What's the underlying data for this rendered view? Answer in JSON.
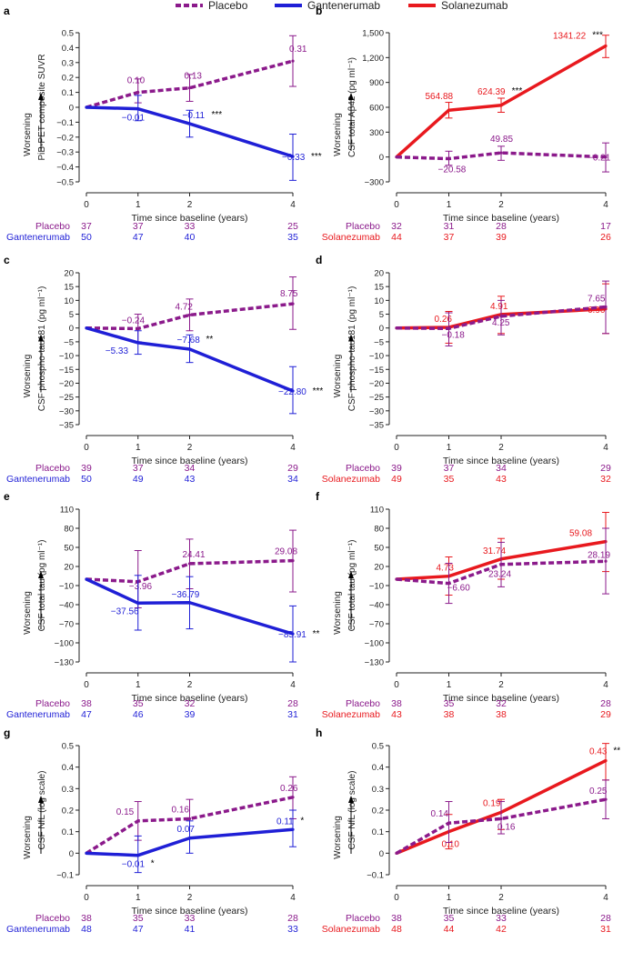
{
  "legend": [
    {
      "name": "Placebo",
      "color": "#8b1a8b",
      "dashed": true
    },
    {
      "name": "Gantenerumab",
      "color": "#1f1fd6",
      "dashed": false
    },
    {
      "name": "Solanezumab",
      "color": "#e8191e",
      "dashed": false
    }
  ],
  "colors": {
    "placebo": "#8b1a8b",
    "gantenerumab": "#1f1fd6",
    "solanezumab": "#e8191e",
    "axis": "#222222"
  },
  "common": {
    "xlabel": "Time since baseline (years)",
    "worsening": "Worsening",
    "x_ticks": [
      0,
      1,
      2,
      4
    ]
  },
  "chart_data": [
    {
      "panel": "a",
      "type": "line",
      "ylabel": "PiB-PET composite SUVR",
      "ylim": [
        -0.5,
        0.5
      ],
      "yticks": [
        0.5,
        0.4,
        0.3,
        0.2,
        0.1,
        0,
        -0.1,
        -0.2,
        -0.3,
        -0.4,
        -0.5
      ],
      "x": [
        0,
        1,
        2,
        4
      ],
      "series": [
        {
          "name": "Placebo",
          "color": "#8b1a8b",
          "dashed": true,
          "values": [
            0,
            0.1,
            0.13,
            0.31
          ],
          "err": [
            [
              0,
              0
            ],
            [
              0.03,
              0.19
            ],
            [
              0.04,
              0.22
            ],
            [
              0.14,
              0.48
            ]
          ],
          "labels": [
            "",
            "0.10",
            "0.13",
            "0.31"
          ],
          "sig": [
            "",
            "",
            "",
            ""
          ]
        },
        {
          "name": "Gantenerumab",
          "color": "#1f1fd6",
          "dashed": false,
          "values": [
            0,
            -0.01,
            -0.11,
            -0.33
          ],
          "err": [
            [
              0,
              0
            ],
            [
              -0.09,
              0.08
            ],
            [
              -0.2,
              -0.02
            ],
            [
              -0.49,
              -0.18
            ]
          ],
          "labels": [
            "",
            "−0.01",
            "−0.11",
            "−0.33"
          ],
          "sig": [
            "",
            "",
            "***",
            "***"
          ]
        }
      ],
      "counts": [
        {
          "name": "Placebo",
          "values": [
            "37",
            "37",
            "33",
            "25"
          ]
        },
        {
          "name": "Gantenerumab",
          "values": [
            "50",
            "47",
            "40",
            "35"
          ]
        }
      ]
    },
    {
      "panel": "b",
      "type": "line",
      "ylabel": "CSF total Aβ42 (pg ml⁻¹)",
      "ylim": [
        -300,
        1500
      ],
      "yticks": [
        1500,
        1200,
        900,
        600,
        300,
        0,
        -300
      ],
      "x": [
        0,
        1,
        2,
        4
      ],
      "series": [
        {
          "name": "Solanezumab",
          "color": "#e8191e",
          "dashed": false,
          "values": [
            0,
            564.88,
            624.39,
            1341.22
          ],
          "err": [
            [
              0,
              0
            ],
            [
              470,
              660
            ],
            [
              540,
              710
            ],
            [
              1200,
              1470
            ]
          ],
          "labels": [
            "",
            "564.88",
            "624.39",
            "1341.22"
          ],
          "sig": [
            "",
            "",
            "***",
            "***"
          ]
        },
        {
          "name": "Placebo",
          "color": "#8b1a8b",
          "dashed": true,
          "values": [
            0,
            -20.58,
            49.85,
            -0.21
          ],
          "err": [
            [
              0,
              0
            ],
            [
              -100,
              70
            ],
            [
              -40,
              130
            ],
            [
              -180,
              170
            ]
          ],
          "labels": [
            "",
            "−20.58",
            "49.85",
            "−0.21"
          ],
          "sig": [
            "",
            "",
            "",
            ""
          ]
        }
      ],
      "counts": [
        {
          "name": "Placebo",
          "values": [
            "32",
            "31",
            "28",
            "17"
          ]
        },
        {
          "name": "Solanezumab",
          "values": [
            "44",
            "37",
            "39",
            "26"
          ]
        }
      ]
    },
    {
      "panel": "c",
      "type": "line",
      "ylabel": "CSF phospho-tau181 (pg ml⁻¹)",
      "ylim": [
        -35,
        20
      ],
      "yticks": [
        20,
        15,
        10,
        5,
        0,
        -5,
        -10,
        -15,
        -20,
        -25,
        -30,
        -35
      ],
      "x": [
        0,
        1,
        2,
        4
      ],
      "series": [
        {
          "name": "Placebo",
          "color": "#8b1a8b",
          "dashed": true,
          "values": [
            0,
            -0.24,
            4.72,
            8.75
          ],
          "err": [
            [
              0,
              0
            ],
            [
              -5,
              5
            ],
            [
              -1,
              10.5
            ],
            [
              -0.5,
              18.5
            ]
          ],
          "labels": [
            "",
            "−0.24",
            "4.72",
            "8.75"
          ],
          "sig": [
            "",
            "",
            "",
            ""
          ]
        },
        {
          "name": "Gantenerumab",
          "color": "#1f1fd6",
          "dashed": false,
          "values": [
            0,
            -5.33,
            -7.68,
            -22.8
          ],
          "err": [
            [
              0,
              0
            ],
            [
              -9.5,
              -1
            ],
            [
              -12.5,
              -2.5
            ],
            [
              -31,
              -14
            ]
          ],
          "labels": [
            "",
            "−5.33",
            "−7.68",
            "−22.80"
          ],
          "sig": [
            "",
            "",
            "**",
            "***"
          ]
        }
      ],
      "counts": [
        {
          "name": "Placebo",
          "values": [
            "39",
            "37",
            "34",
            "29"
          ]
        },
        {
          "name": "Gantenerumab",
          "values": [
            "50",
            "49",
            "43",
            "34"
          ]
        }
      ]
    },
    {
      "panel": "d",
      "type": "line",
      "ylabel": "CSF phospho-tau181 (pg ml⁻¹)",
      "ylim": [
        -35,
        20
      ],
      "yticks": [
        20,
        15,
        10,
        5,
        0,
        -5,
        -10,
        -15,
        -20,
        -25,
        -30,
        -35
      ],
      "x": [
        0,
        1,
        2,
        4
      ],
      "series": [
        {
          "name": "Solanezumab",
          "color": "#e8191e",
          "dashed": false,
          "values": [
            0,
            0.26,
            4.91,
            6.9
          ],
          "err": [
            [
              0,
              0
            ],
            [
              -5.5,
              6
            ],
            [
              -2,
              11.5
            ],
            [
              -2,
              16
            ]
          ],
          "labels": [
            "",
            "0.26",
            "4.91",
            "6.90"
          ],
          "sig": [
            "",
            "",
            "",
            ""
          ]
        },
        {
          "name": "Placebo",
          "color": "#8b1a8b",
          "dashed": true,
          "values": [
            0,
            -0.18,
            4.25,
            7.65
          ],
          "err": [
            [
              0,
              0
            ],
            [
              -6.5,
              5.5
            ],
            [
              -2.5,
              10
            ],
            [
              -2,
              17
            ]
          ],
          "labels": [
            "",
            "−0.18",
            "4.25",
            "7.65"
          ],
          "sig": [
            "",
            "",
            "",
            ""
          ]
        }
      ],
      "counts": [
        {
          "name": "Placebo",
          "values": [
            "39",
            "37",
            "34",
            "29"
          ]
        },
        {
          "name": "Solanezumab",
          "values": [
            "49",
            "35",
            "43",
            "32"
          ]
        }
      ]
    },
    {
      "panel": "e",
      "type": "line",
      "ylabel": "CSF total tau (pg ml⁻¹)",
      "ylim": [
        -130,
        110
      ],
      "yticks": [
        110,
        80,
        50,
        20,
        -10,
        -40,
        -70,
        -100,
        -130
      ],
      "x": [
        0,
        1,
        2,
        4
      ],
      "series": [
        {
          "name": "Placebo",
          "color": "#8b1a8b",
          "dashed": true,
          "values": [
            0,
            -3.96,
            24.41,
            29.08
          ],
          "err": [
            [
              0,
              0
            ],
            [
              -45,
              45
            ],
            [
              -15,
              63
            ],
            [
              -20,
              77
            ]
          ],
          "labels": [
            "",
            "−3.96",
            "24.41",
            "29.08"
          ],
          "sig": [
            "",
            "",
            "",
            ""
          ]
        },
        {
          "name": "Gantenerumab",
          "color": "#1f1fd6",
          "dashed": false,
          "values": [
            0,
            -37.56,
            -36.79,
            -85.91
          ],
          "err": [
            [
              0,
              0
            ],
            [
              -80,
              6
            ],
            [
              -78,
              4
            ],
            [
              -130,
              -42
            ]
          ],
          "labels": [
            "",
            "−37.56",
            "−36.79",
            "−85.91"
          ],
          "sig": [
            "",
            "",
            "",
            "**"
          ]
        }
      ],
      "counts": [
        {
          "name": "Placebo",
          "values": [
            "38",
            "35",
            "32",
            "28"
          ]
        },
        {
          "name": "Gantenerumab",
          "values": [
            "47",
            "46",
            "39",
            "31"
          ]
        }
      ]
    },
    {
      "panel": "f",
      "type": "line",
      "ylabel": "CSF total tau (pg ml⁻¹)",
      "ylim": [
        -130,
        110
      ],
      "yticks": [
        110,
        80,
        50,
        20,
        -10,
        -40,
        -70,
        -100,
        -130
      ],
      "x": [
        0,
        1,
        2,
        4
      ],
      "series": [
        {
          "name": "Solanezumab",
          "color": "#e8191e",
          "dashed": false,
          "values": [
            0,
            4.73,
            31.74,
            59.08
          ],
          "err": [
            [
              0,
              0
            ],
            [
              -25,
              35
            ],
            [
              0,
              64
            ],
            [
              12,
              105
            ]
          ],
          "labels": [
            "",
            "4.73",
            "31.74",
            "59.08"
          ],
          "sig": [
            "",
            "",
            "",
            ""
          ]
        },
        {
          "name": "Placebo",
          "color": "#8b1a8b",
          "dashed": true,
          "values": [
            0,
            -6.6,
            23.24,
            28.19
          ],
          "err": [
            [
              0,
              0
            ],
            [
              -38,
              25
            ],
            [
              -12,
              58
            ],
            [
              -23,
              80
            ]
          ],
          "labels": [
            "",
            "−6.60",
            "23.24",
            "28.19"
          ],
          "sig": [
            "",
            "",
            "",
            ""
          ]
        }
      ],
      "counts": [
        {
          "name": "Placebo",
          "values": [
            "38",
            "35",
            "32",
            "28"
          ]
        },
        {
          "name": "Solanezumab",
          "values": [
            "43",
            "38",
            "38",
            "29"
          ]
        }
      ]
    },
    {
      "panel": "g",
      "type": "line",
      "ylabel": "CSF NfL (log scale)",
      "ylim": [
        -0.1,
        0.5
      ],
      "yticks": [
        0.5,
        0.4,
        0.3,
        0.2,
        0.1,
        0,
        -0.1
      ],
      "x": [
        0,
        1,
        2,
        4
      ],
      "series": [
        {
          "name": "Placebo",
          "color": "#8b1a8b",
          "dashed": true,
          "values": [
            0,
            0.15,
            0.16,
            0.26
          ],
          "err": [
            [
              0,
              0
            ],
            [
              0.06,
              0.24
            ],
            [
              0.07,
              0.25
            ],
            [
              0.16,
              0.355
            ]
          ],
          "labels": [
            "",
            "0.15",
            "0.16",
            "0.26"
          ],
          "sig": [
            "",
            "",
            "",
            ""
          ]
        },
        {
          "name": "Gantenerumab",
          "color": "#1f1fd6",
          "dashed": false,
          "values": [
            0,
            -0.01,
            0.07,
            0.11
          ],
          "err": [
            [
              0,
              0
            ],
            [
              -0.09,
              0.08
            ],
            [
              0,
              0.15
            ],
            [
              0.03,
              0.2
            ]
          ],
          "labels": [
            "",
            "−0.01",
            "0.07",
            "0.11"
          ],
          "sig": [
            "",
            "*",
            "",
            "*"
          ]
        }
      ],
      "counts": [
        {
          "name": "Placebo",
          "values": [
            "38",
            "35",
            "33",
            "28"
          ]
        },
        {
          "name": "Gantenerumab",
          "values": [
            "48",
            "47",
            "41",
            "33"
          ]
        }
      ]
    },
    {
      "panel": "h",
      "type": "line",
      "ylabel": "CSF NfL (log scale)",
      "ylim": [
        -0.1,
        0.5
      ],
      "yticks": [
        0.5,
        0.4,
        0.3,
        0.2,
        0.1,
        0,
        -0.1
      ],
      "x": [
        0,
        1,
        2,
        4
      ],
      "series": [
        {
          "name": "Solanezumab",
          "color": "#e8191e",
          "dashed": false,
          "values": [
            0,
            0.1,
            0.19,
            0.43
          ],
          "err": [
            [
              0,
              0
            ],
            [
              0.02,
              0.18
            ],
            [
              0.11,
              0.25
            ],
            [
              0.34,
              0.51
            ]
          ],
          "labels": [
            "",
            "0.10",
            "0.19",
            "0.43"
          ],
          "sig": [
            "",
            "",
            "",
            "**"
          ]
        },
        {
          "name": "Placebo",
          "color": "#8b1a8b",
          "dashed": true,
          "values": [
            0,
            0.14,
            0.16,
            0.25
          ],
          "err": [
            [
              0,
              0
            ],
            [
              0.05,
              0.24
            ],
            [
              0.09,
              0.24
            ],
            [
              0.16,
              0.34
            ]
          ],
          "labels": [
            "",
            "0.14",
            "0.16",
            "0.25"
          ],
          "sig": [
            "",
            "",
            "",
            ""
          ]
        }
      ],
      "counts": [
        {
          "name": "Placebo",
          "values": [
            "38",
            "35",
            "33",
            "28"
          ]
        },
        {
          "name": "Solanezumab",
          "values": [
            "48",
            "44",
            "42",
            "31"
          ]
        }
      ]
    }
  ]
}
